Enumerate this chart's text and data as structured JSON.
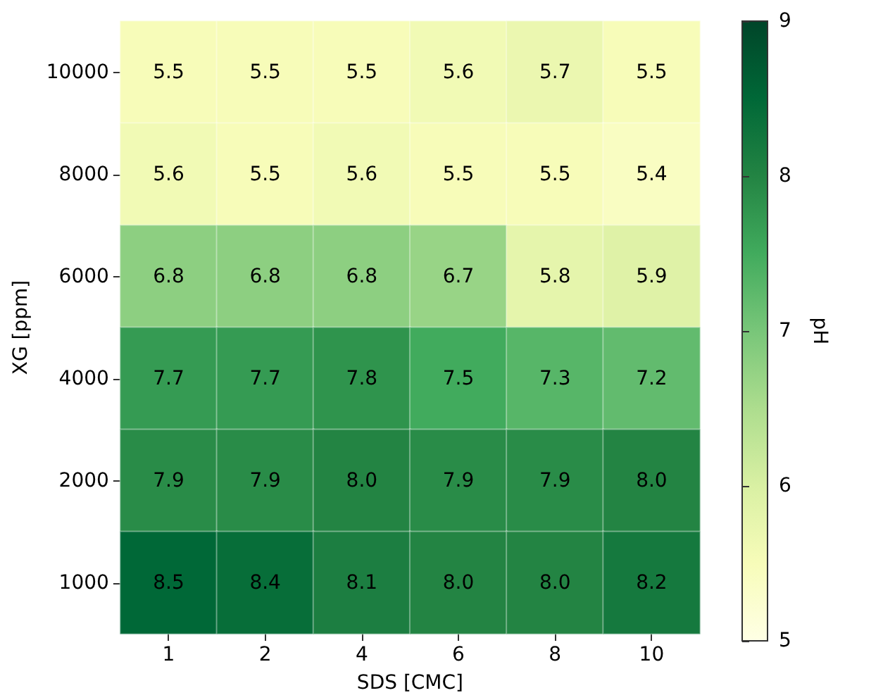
{
  "chart_data": {
    "type": "heatmap",
    "xlabel": "SDS [CMC]",
    "ylabel": "XG [ppm]",
    "clabel": "pH",
    "categories": [
      "1",
      "2",
      "4",
      "6",
      "8",
      "10"
    ],
    "y_categories": [
      "10000",
      "8000",
      "6000",
      "4000",
      "2000",
      "1000"
    ],
    "cells": [
      [
        5.5,
        5.5,
        5.5,
        5.6,
        5.7,
        5.5
      ],
      [
        5.6,
        5.5,
        5.6,
        5.5,
        5.5,
        5.4
      ],
      [
        6.8,
        6.8,
        6.8,
        6.7,
        5.8,
        5.9
      ],
      [
        7.7,
        7.7,
        7.8,
        7.5,
        7.3,
        7.2
      ],
      [
        7.9,
        7.9,
        8.0,
        7.9,
        7.9,
        8.0
      ],
      [
        8.5,
        8.4,
        8.1,
        8.0,
        8.0,
        8.2
      ]
    ],
    "cell_labels": [
      [
        "5.5",
        "5.5",
        "5.5",
        "5.6",
        "5.7",
        "5.5"
      ],
      [
        "5.6",
        "5.5",
        "5.6",
        "5.5",
        "5.5",
        "5.4"
      ],
      [
        "6.8",
        "6.8",
        "6.8",
        "6.7",
        "5.8",
        "5.9"
      ],
      [
        "7.7",
        "7.7",
        "7.8",
        "7.5",
        "7.3",
        "7.2"
      ],
      [
        "7.9",
        "7.9",
        "8.0",
        "7.9",
        "7.9",
        "8.0"
      ],
      [
        "8.5",
        "8.4",
        "8.1",
        "8.0",
        "8.0",
        "8.2"
      ]
    ],
    "clim": [
      5,
      9
    ],
    "cticks": [
      5,
      6,
      7,
      8,
      9
    ]
  }
}
